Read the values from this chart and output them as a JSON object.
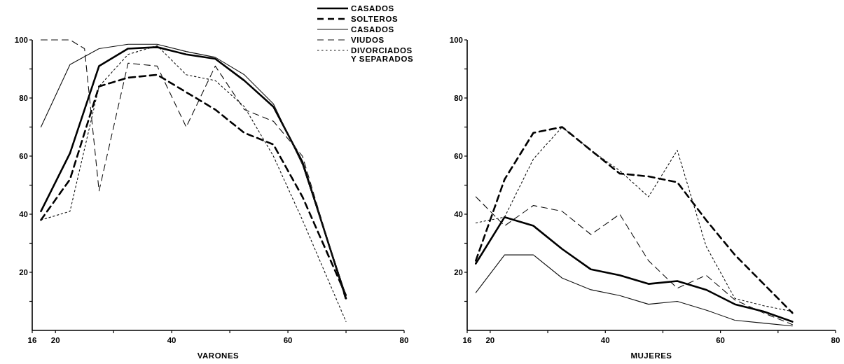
{
  "chart_data": [
    {
      "type": "line",
      "xlabel": "VARONES",
      "xlim": [
        16,
        80
      ],
      "xticks": [
        16,
        20,
        {
          "value": 30,
          "label": null
        },
        40,
        {
          "value": 50,
          "label": null
        },
        60,
        {
          "value": 70,
          "label": null
        },
        80
      ],
      "ylim": [
        0,
        100
      ],
      "yticks": [
        {
          "value": 10,
          "label": null
        },
        20,
        {
          "value": 30,
          "label": null
        },
        40,
        {
          "value": 50,
          "label": null
        },
        60,
        {
          "value": 70,
          "label": null
        },
        80,
        {
          "value": 90,
          "label": null
        },
        100
      ],
      "grid": false,
      "legend": "top right",
      "marker": "none",
      "x": [
        17.5,
        22.5,
        27.5,
        32.5,
        37.5,
        42.5,
        47.5,
        52.5,
        57.5,
        62.5,
        70
      ],
      "series": [
        {
          "name": "CASADOS",
          "color": "#000000",
          "line_style": "solid",
          "values": [
            41,
            61,
            91,
            97,
            97.5,
            95,
            93.5,
            86,
            77,
            58,
            11
          ]
        },
        {
          "name": "SOLTEROS",
          "color": "#000000",
          "line_style": "dashed",
          "values": [
            38,
            52,
            84,
            87,
            88,
            82,
            76,
            68,
            64,
            46,
            12
          ]
        },
        {
          "name": "CASADOS",
          "color": "#111111",
          "line_style": "solid",
          "values": [
            70,
            91.5,
            97,
            98.5,
            98.5,
            96,
            94,
            88,
            78,
            57,
            12
          ]
        },
        {
          "name": "VIUDOS",
          "color": "#111111",
          "line_style": "dashed",
          "x": [
            17.5,
            22.5,
            25,
            27.5,
            32.5,
            37.5,
            42.5,
            47.5,
            52.5,
            57.5,
            62.5,
            70
          ],
          "values": [
            100,
            100,
            97,
            48,
            92,
            91,
            70,
            91,
            76,
            72,
            60,
            10
          ]
        },
        {
          "name": "DIVORCIADOS\nY SEPARADOS",
          "color": "#111111",
          "line_style": "dotted",
          "values": [
            38,
            41,
            84,
            95,
            98,
            88,
            86,
            77,
            60,
            38,
            3
          ]
        }
      ]
    },
    {
      "type": "line",
      "xlabel": "MUJERES",
      "xlim": [
        16,
        80
      ],
      "xticks": [
        16,
        20,
        {
          "value": 30,
          "label": null
        },
        40,
        {
          "value": 50,
          "label": null
        },
        60,
        {
          "value": 70,
          "label": null
        },
        80
      ],
      "ylim": [
        0,
        100
      ],
      "yticks": [
        {
          "value": 10,
          "label": null
        },
        20,
        {
          "value": 30,
          "label": null
        },
        40,
        {
          "value": 50,
          "label": null
        },
        60,
        {
          "value": 70,
          "label": null
        },
        80,
        {
          "value": 90,
          "label": null
        },
        100
      ],
      "grid": false,
      "legend": false,
      "marker": "none",
      "x": [
        17.5,
        22.5,
        27.5,
        32.5,
        37.5,
        42.5,
        47.5,
        52.5,
        57.5,
        62.5,
        67.5,
        72.5
      ],
      "series": [
        {
          "color": "#000000",
          "line_style": "solid",
          "values": [
            23,
            39,
            36,
            28,
            21,
            19,
            16,
            17,
            14,
            9,
            6.5,
            3
          ]
        },
        {
          "color": "#000000",
          "line_style": "dashed",
          "values": [
            24,
            52,
            68,
            70,
            62,
            54,
            53,
            51,
            38,
            26,
            16,
            6
          ]
        },
        {
          "color": "#111111",
          "line_style": "solid",
          "values": [
            13,
            26,
            26,
            18,
            14,
            12,
            9,
            10,
            7,
            3.5,
            2.5,
            1.5
          ]
        },
        {
          "color": "#111111",
          "line_style": "dashed",
          "values": [
            46,
            36,
            43,
            41,
            33,
            40,
            24,
            14.5,
            19,
            10.5,
            6,
            2
          ]
        },
        {
          "color": "#111111",
          "line_style": "dotted",
          "values": [
            37,
            39,
            59,
            70,
            62,
            55,
            46,
            62,
            29,
            11,
            8.5,
            6.5
          ]
        }
      ]
    }
  ]
}
